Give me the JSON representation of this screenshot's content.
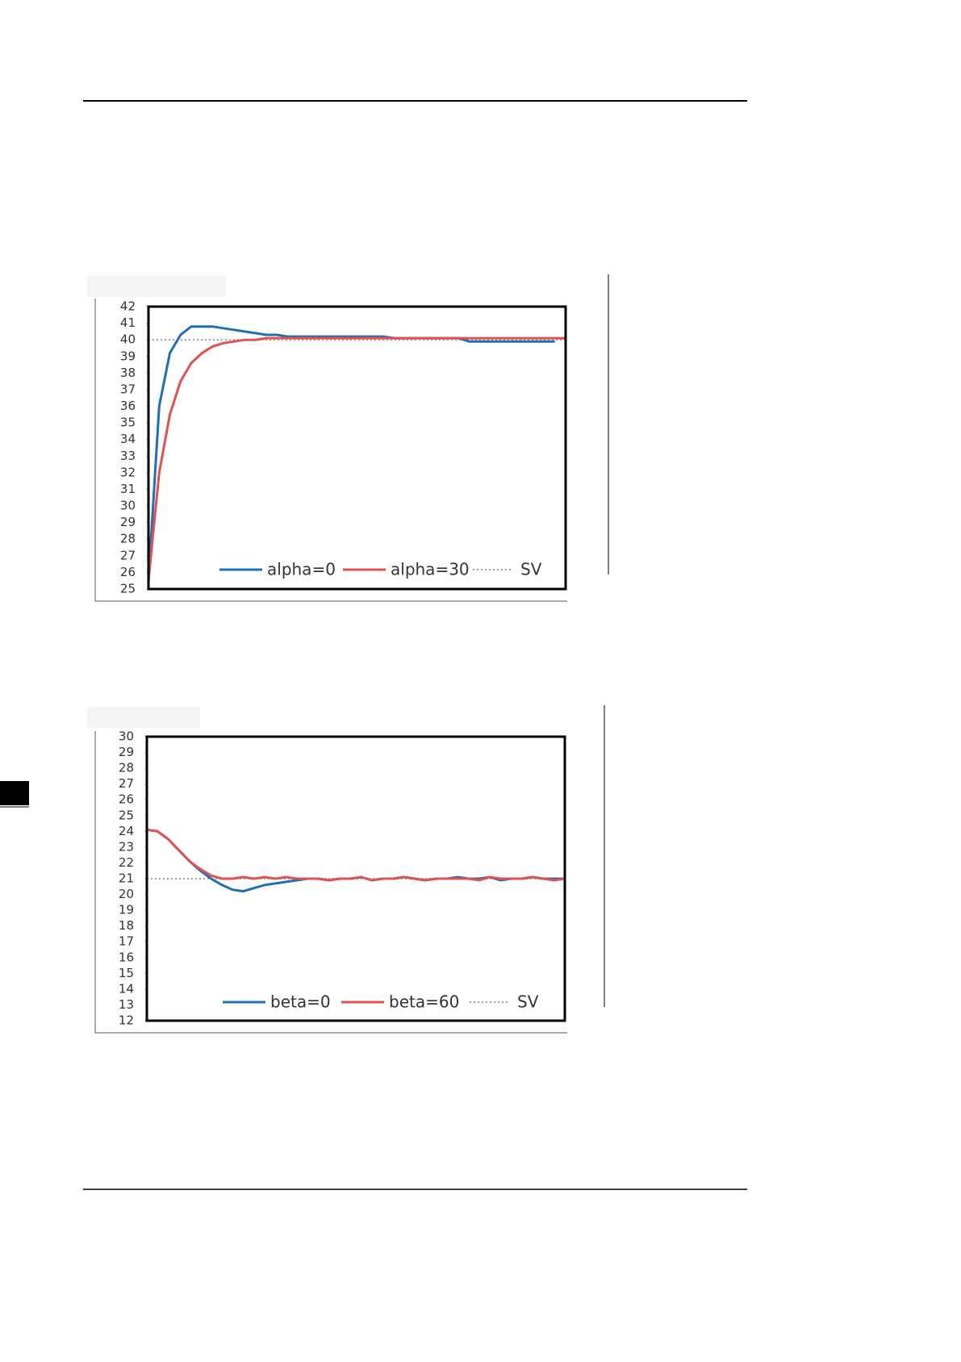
{
  "chart_data": [
    {
      "type": "line",
      "ylim": [
        25,
        42
      ],
      "yticks": [
        25,
        26,
        27,
        28,
        29,
        30,
        31,
        32,
        33,
        34,
        35,
        36,
        37,
        38,
        39,
        40,
        41,
        42
      ],
      "series": [
        {
          "name": "alpha=0",
          "color": "#1f6fb2",
          "values": [
            25.5,
            36,
            39.2,
            40.3,
            40.8,
            40.8,
            40.8,
            40.7,
            40.6,
            40.5,
            40.4,
            40.3,
            40.3,
            40.2,
            40.2,
            40.2,
            40.2,
            40.2,
            40.2,
            40.2,
            40.2,
            40.2,
            40.2,
            40.1,
            40.1,
            40.1,
            40.1,
            40.1,
            40.1,
            40.1,
            39.9,
            39.9,
            39.9,
            39.9,
            39.9,
            39.9,
            39.9,
            39.9,
            39.9,
            null
          ]
        },
        {
          "name": "alpha=30",
          "color": "#e05252",
          "values": [
            25.5,
            32,
            35.5,
            37.5,
            38.6,
            39.2,
            39.6,
            39.8,
            39.9,
            40,
            40,
            40.1,
            40.1,
            40.1,
            40.1,
            40.1,
            40.1,
            40.1,
            40.1,
            40.1,
            40.1,
            40.1,
            40.1,
            40.1,
            40.1,
            40.1,
            40.1,
            40.1,
            40.1,
            40.1,
            40.1,
            40.1,
            40.1,
            40.1,
            40.1,
            40.1,
            40.1,
            40.1,
            40.1,
            40.1
          ]
        }
      ],
      "reference": {
        "name": "SV",
        "value": 40,
        "color": "#a0a0a0"
      }
    },
    {
      "type": "line",
      "ylim": [
        12,
        30
      ],
      "yticks": [
        12,
        13,
        14,
        15,
        16,
        17,
        18,
        19,
        20,
        21,
        22,
        23,
        24,
        25,
        26,
        27,
        28,
        29,
        30
      ],
      "series": [
        {
          "name": "beta=0",
          "color": "#1f6fb2",
          "values": [
            24.1,
            24,
            23.5,
            22.8,
            22.1,
            21.5,
            21,
            20.6,
            20.3,
            20.2,
            20.4,
            20.6,
            20.7,
            20.8,
            20.9,
            21,
            21,
            20.9,
            21,
            21,
            21.1,
            20.9,
            21,
            21,
            21.1,
            21,
            20.9,
            21,
            21,
            21.1,
            21,
            21,
            21.1,
            20.9,
            21,
            21,
            21.1,
            21,
            21,
            21
          ]
        },
        {
          "name": "beta=60",
          "color": "#e05252",
          "values": [
            24.1,
            24,
            23.5,
            22.8,
            22.1,
            21.6,
            21.2,
            21,
            21,
            21.1,
            21,
            21.1,
            21,
            21.1,
            21,
            21,
            21,
            20.9,
            21,
            21,
            21.1,
            20.9,
            21,
            21,
            21.1,
            21,
            20.9,
            21,
            21,
            21,
            21,
            20.9,
            21.1,
            21,
            21,
            21,
            21.1,
            21,
            20.9,
            21
          ]
        }
      ],
      "reference": {
        "name": "SV",
        "value": 21,
        "color": "#a0a0a0"
      }
    }
  ]
}
